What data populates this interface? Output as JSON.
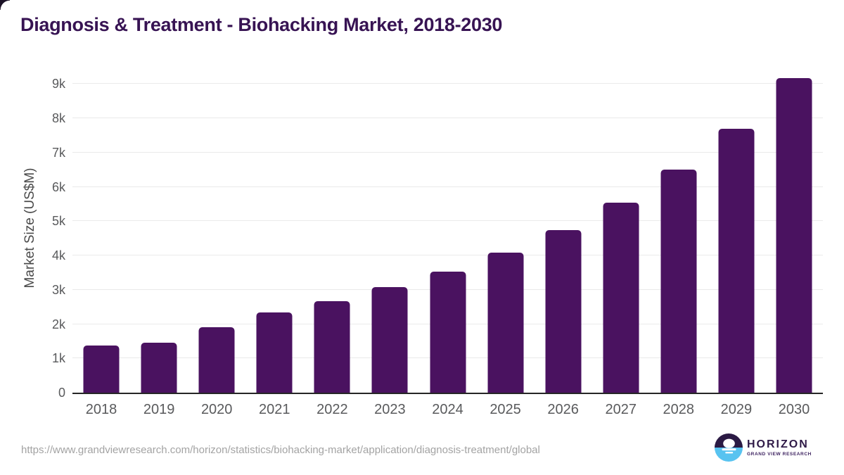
{
  "page": {
    "source_url": "https://www.grandviewresearch.com/horizon/statistics/biohacking-market/application/diagnosis-treatment/global",
    "brand": {
      "name": "HORIZON",
      "tagline": "GRAND VIEW RESEARCH"
    }
  },
  "chart_data": {
    "type": "bar",
    "title": "Diagnosis & Treatment - Biohacking Market, 2018-2030",
    "xlabel": "",
    "ylabel": "Market Size (US$M)",
    "categories": [
      "2018",
      "2019",
      "2020",
      "2021",
      "2022",
      "2023",
      "2024",
      "2025",
      "2026",
      "2027",
      "2028",
      "2029",
      "2030"
    ],
    "values": [
      1380,
      1450,
      1915,
      2345,
      2675,
      3070,
      3520,
      4075,
      4745,
      5530,
      6495,
      7700,
      9160
    ],
    "ylim": [
      0,
      9600
    ],
    "yticks": [
      {
        "value": 0,
        "label": "0"
      },
      {
        "value": 1000,
        "label": "1k"
      },
      {
        "value": 2000,
        "label": "2k"
      },
      {
        "value": 3000,
        "label": "3k"
      },
      {
        "value": 4000,
        "label": "4k"
      },
      {
        "value": 5000,
        "label": "5k"
      },
      {
        "value": 6000,
        "label": "6k"
      },
      {
        "value": 7000,
        "label": "7k"
      },
      {
        "value": 8000,
        "label": "8k"
      },
      {
        "value": 9000,
        "label": "9k"
      }
    ],
    "grid": true,
    "legend": false
  },
  "colors": {
    "bar": "#4a1260",
    "title": "#371353",
    "gridline": "#eaeaea",
    "axis_line": "#262626",
    "tick_label": "#595a5c",
    "source_url": "#a3a3a3",
    "logo_purple": "#2b1a44",
    "logo_blue": "#58c3f0",
    "brand_text": "#2f1a47"
  }
}
